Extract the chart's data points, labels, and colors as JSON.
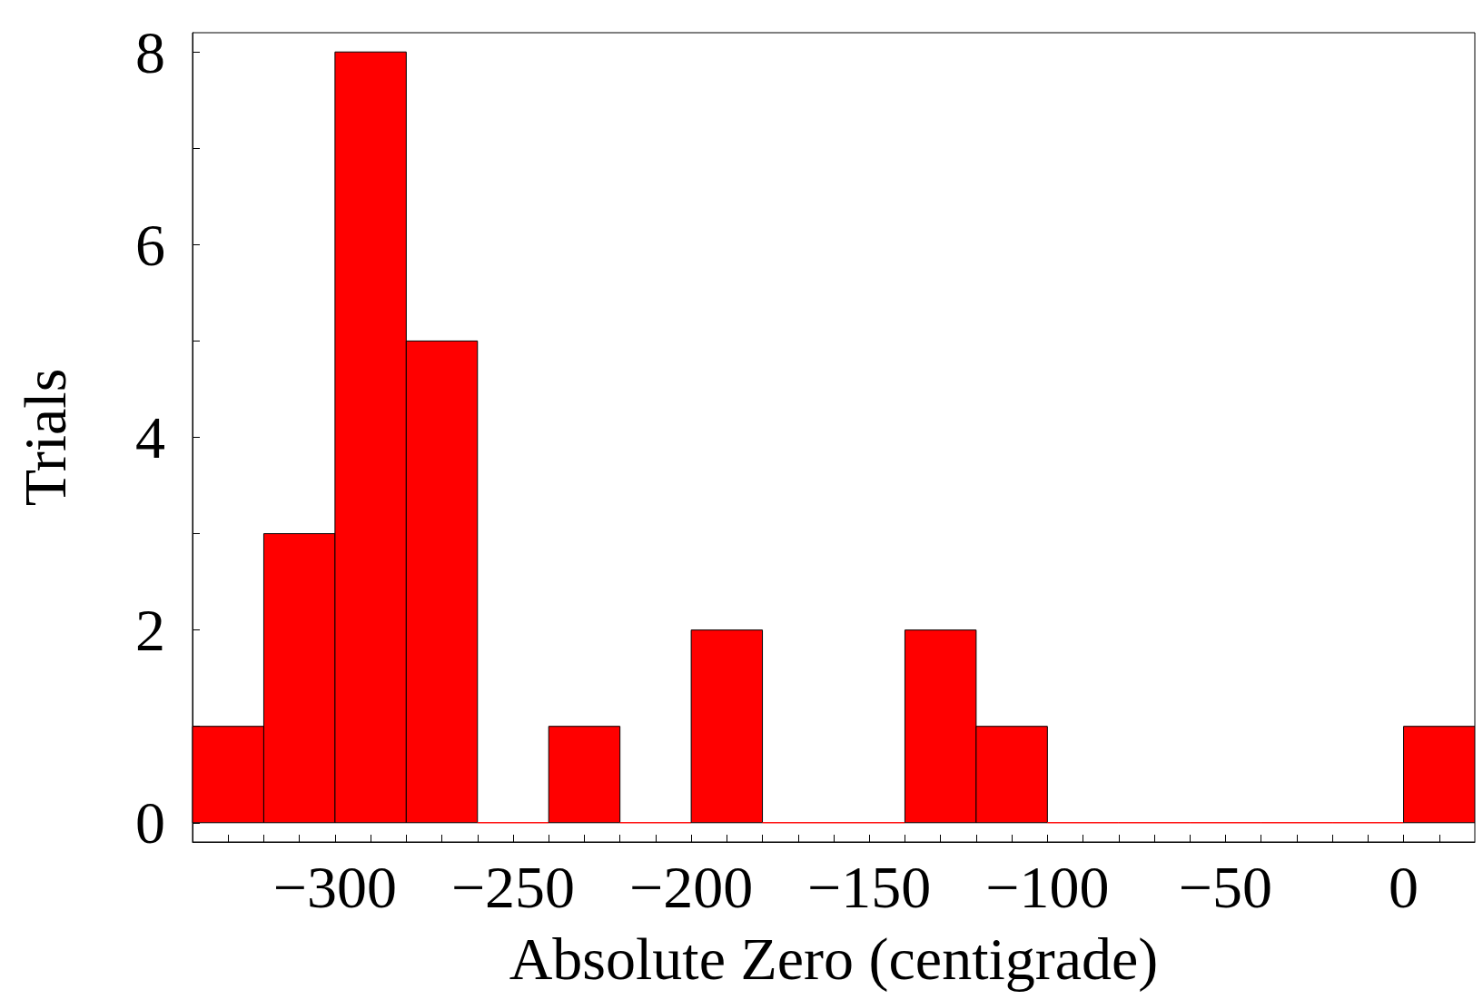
{
  "chart_data": {
    "type": "histogram",
    "xlabel": "Absolute Zero (centigrade)",
    "ylabel": "Trials",
    "color": "#ff0000",
    "bins": [
      -340,
      -320,
      -300,
      -280,
      -260,
      -240,
      -220,
      -200,
      -180,
      -160,
      -140,
      -120,
      -100,
      -80,
      -60,
      -40,
      -20,
      0,
      20
    ],
    "values": [
      1,
      3,
      8,
      5,
      0,
      1,
      0,
      2,
      0,
      0,
      2,
      1,
      0,
      0,
      0,
      0,
      0,
      1
    ],
    "xlim": [
      -340,
      20
    ],
    "xticks": [
      {
        "value": -340,
        "label": null
      },
      {
        "value": -330,
        "label": null
      },
      {
        "value": -320,
        "label": null
      },
      {
        "value": -310,
        "label": null
      },
      -300,
      {
        "value": -290,
        "label": null
      },
      {
        "value": -280,
        "label": null
      },
      {
        "value": -270,
        "label": null
      },
      {
        "value": -260,
        "label": null
      },
      -250,
      {
        "value": -240,
        "label": null
      },
      {
        "value": -230,
        "label": null
      },
      {
        "value": -220,
        "label": null
      },
      {
        "value": -210,
        "label": null
      },
      -200,
      {
        "value": -190,
        "label": null
      },
      {
        "value": -180,
        "label": null
      },
      {
        "value": -170,
        "label": null
      },
      {
        "value": -160,
        "label": null
      },
      -150,
      {
        "value": -140,
        "label": null
      },
      {
        "value": -130,
        "label": null
      },
      {
        "value": -120,
        "label": null
      },
      {
        "value": -110,
        "label": null
      },
      -100,
      {
        "value": -90,
        "label": null
      },
      {
        "value": -80,
        "label": null
      },
      {
        "value": -70,
        "label": null
      },
      {
        "value": -60,
        "label": null
      },
      -50,
      {
        "value": -40,
        "label": null
      },
      {
        "value": -30,
        "label": null
      },
      {
        "value": -20,
        "label": null
      },
      {
        "value": -10,
        "label": null
      },
      0,
      {
        "value": 10,
        "label": null
      }
    ],
    "ylim": [
      -0.2,
      8.2
    ],
    "yticks": [
      0,
      {
        "value": 1,
        "label": null
      },
      2,
      {
        "value": 3,
        "label": null
      },
      4,
      {
        "value": 5,
        "label": null
      },
      6,
      {
        "value": 7,
        "label": null
      },
      8
    ],
    "grid": false
  }
}
